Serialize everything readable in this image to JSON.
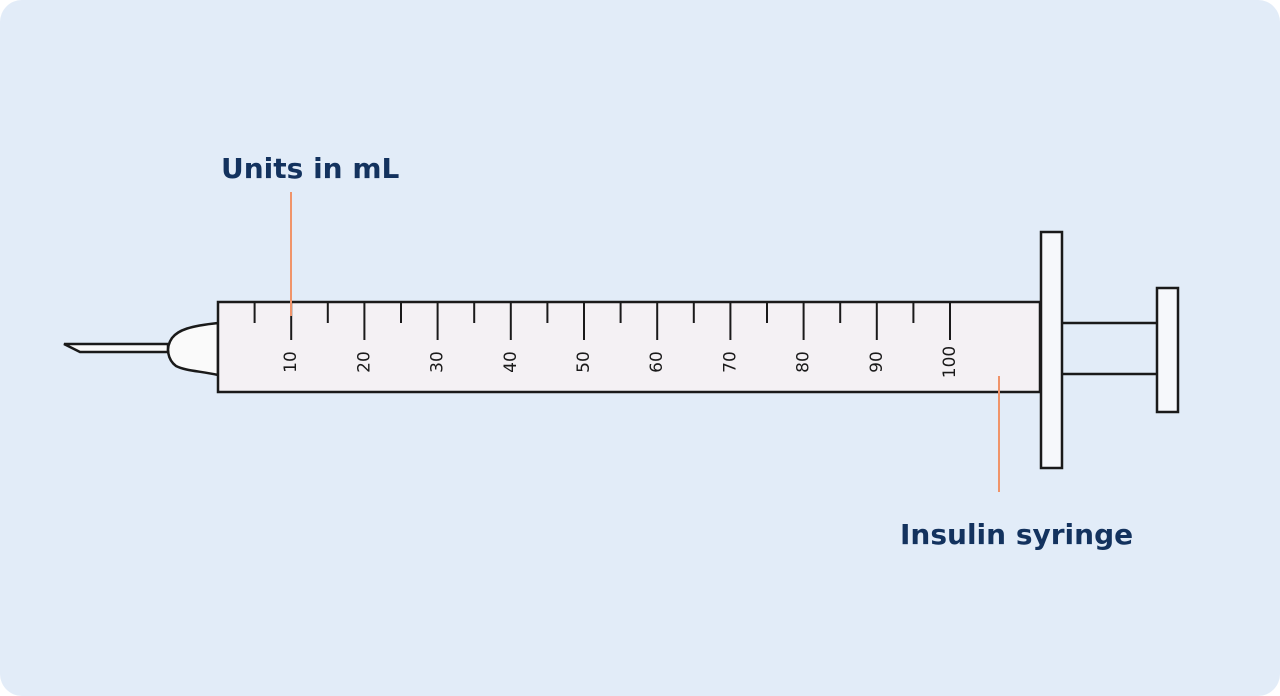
{
  "callouts": {
    "scale": "Units in mL",
    "device": "Insulin syringe"
  },
  "scale": {
    "labels": [
      10,
      20,
      30,
      40,
      50,
      60,
      70,
      80,
      90,
      100
    ]
  }
}
